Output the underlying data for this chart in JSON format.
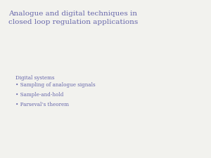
{
  "title_line1": "Analogue and digital techniques in",
  "title_line2": "closed loop regulation applications",
  "section_header": "Digital systems",
  "bullet_points": [
    "Sampling of analogue signals",
    "Sample-and-hold",
    "Parseval’s theorem"
  ],
  "text_color": "#6666aa",
  "background_color": "#f2f2ee",
  "title_fontsize": 7.5,
  "header_fontsize": 5.2,
  "bullet_fontsize": 5.2,
  "bullet_marker": "•"
}
